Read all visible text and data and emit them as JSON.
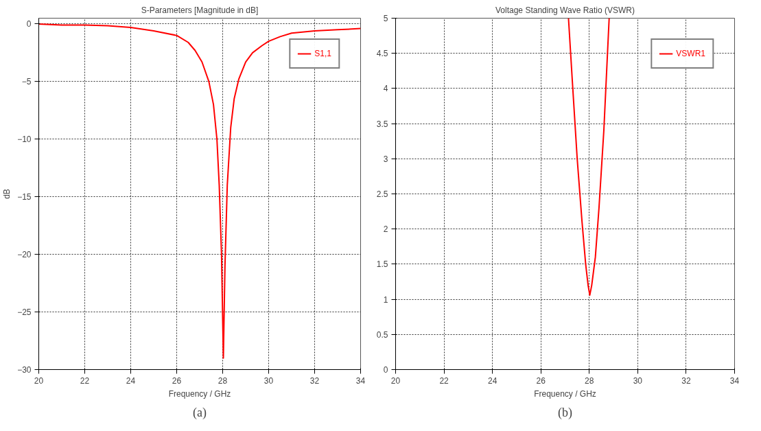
{
  "chart_data": [
    {
      "type": "line",
      "title": "S-Parameters [Magnitude in dB]",
      "xlabel": "Frequency / GHz",
      "ylabel": "dB",
      "annotations": [
        "(a)"
      ],
      "xlim": [
        20,
        34
      ],
      "ylim": [
        -30,
        0.5
      ],
      "xticks": [
        20,
        22,
        24,
        26,
        28,
        30,
        32,
        34
      ],
      "yticks": [
        0,
        -5,
        -10,
        -15,
        -20,
        -25,
        -30
      ],
      "grid": true,
      "legend": "top right",
      "marker": "none",
      "line_style": "solid",
      "series": [
        {
          "name": "S1,1",
          "color": "#ff0000",
          "x": [
            20,
            21,
            22,
            23,
            24,
            25,
            26,
            26.5,
            26.8,
            27.1,
            27.4,
            27.6,
            27.75,
            27.85,
            27.95,
            28.03,
            28.1,
            28.2,
            28.35,
            28.5,
            28.7,
            29,
            29.3,
            29.7,
            30,
            30.5,
            31,
            32,
            33,
            34
          ],
          "values": [
            0,
            -0.1,
            -0.1,
            -0.15,
            -0.3,
            -0.6,
            -1,
            -1.6,
            -2.3,
            -3.3,
            -5,
            -7,
            -10,
            -14,
            -20,
            -29,
            -21,
            -14,
            -9,
            -6.5,
            -4.8,
            -3.3,
            -2.5,
            -1.9,
            -1.5,
            -1.1,
            -0.8,
            -0.6,
            -0.5,
            -0.4
          ]
        }
      ]
    },
    {
      "type": "line",
      "title": "Voltage Standing Wave Ratio (VSWR)",
      "xlabel": "Frequency / GHz",
      "annotations": [
        "(b)"
      ],
      "xlim": [
        20,
        34
      ],
      "ylim": [
        0,
        5
      ],
      "xticks": [
        20,
        22,
        24,
        26,
        28,
        30,
        32,
        34
      ],
      "yticks": [
        0,
        0.5,
        1,
        1.5,
        2,
        2.5,
        3,
        3.5,
        4,
        4.5,
        5
      ],
      "grid": true,
      "legend": "top right",
      "marker": "none",
      "line_style": "solid",
      "series": [
        {
          "name": "VSWR1",
          "color": "#ff0000",
          "x": [
            27.14,
            27.3,
            27.5,
            27.7,
            27.85,
            27.95,
            28.02,
            28.1,
            28.25,
            28.4,
            28.6,
            28.82
          ],
          "values": [
            5,
            4.1,
            3,
            2.1,
            1.5,
            1.2,
            1.06,
            1.2,
            1.6,
            2.3,
            3.4,
            5
          ]
        }
      ]
    }
  ]
}
